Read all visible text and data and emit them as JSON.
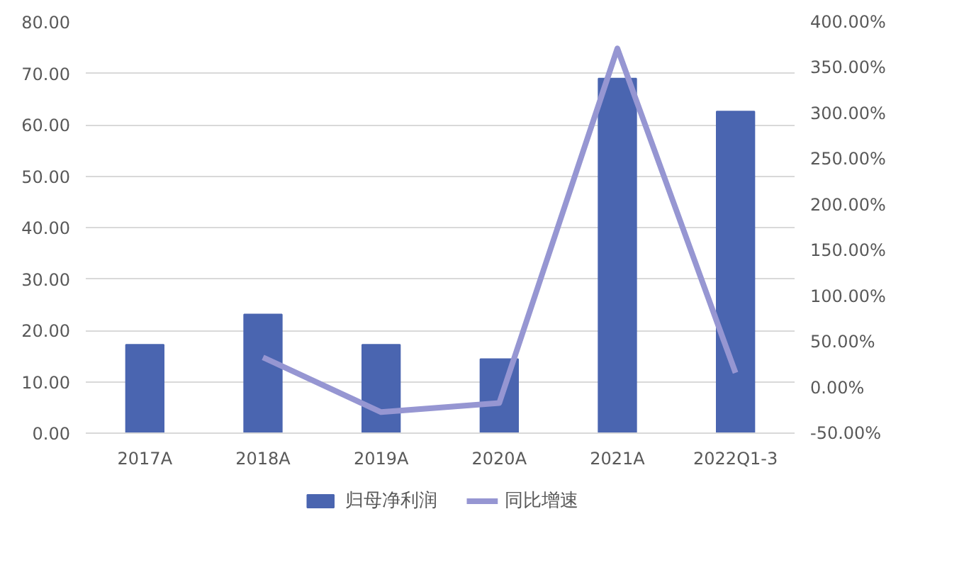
{
  "chart_data": {
    "type": "bar",
    "categories": [
      "2017A",
      "2018A",
      "2019A",
      "2020A",
      "2021A",
      "2022Q1-3"
    ],
    "series": [
      {
        "name": "归母净利润",
        "color": "#4a65b0",
        "values": [
          17.2,
          23.1,
          17.2,
          14.4,
          69.0,
          62.6
        ]
      },
      {
        "name": "同比增速",
        "type": "line",
        "axis": "y2",
        "color": "#9696d2",
        "values": [
          null,
          33,
          -27,
          -17,
          371,
          16
        ]
      }
    ],
    "ylim": [
      0,
      80
    ],
    "yticks": [
      {
        "value": 0,
        "label": "0.00"
      },
      {
        "value": 10,
        "label": "10.00"
      },
      {
        "value": 20,
        "label": "20.00"
      },
      {
        "value": 30,
        "label": "30.00"
      },
      {
        "value": 40,
        "label": "40.00"
      },
      {
        "value": 50,
        "label": "50.00"
      },
      {
        "value": 60,
        "label": "60.00"
      },
      {
        "value": 70,
        "label": "70.00"
      },
      {
        "value": 80,
        "label": "80.00"
      }
    ],
    "y2lim": [
      -50,
      400
    ],
    "y2ticks": [
      {
        "value": -50,
        "label": "-50.00%"
      },
      {
        "value": 0,
        "label": "0.00%"
      },
      {
        "value": 50,
        "label": "50.00%"
      },
      {
        "value": 100,
        "label": "100.00%"
      },
      {
        "value": 150,
        "label": "150.00%"
      },
      {
        "value": 200,
        "label": "200.00%"
      },
      {
        "value": 250,
        "label": "250.00%"
      },
      {
        "value": 300,
        "label": "300.00%"
      },
      {
        "value": 350,
        "label": "350.00%"
      },
      {
        "value": 400,
        "label": "400.00%"
      }
    ],
    "grid": "y",
    "legend": "bottom",
    "line_style": "solid"
  }
}
